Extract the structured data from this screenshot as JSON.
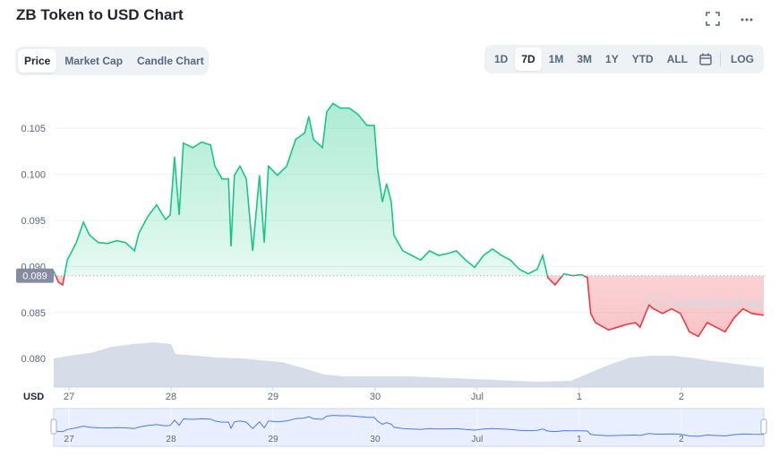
{
  "chart_data": {
    "type": "line",
    "title": "ZB Token to USD Chart",
    "x_axis_label": "USD",
    "watermark": "CoinMarketCap",
    "x": [
      -3.6,
      -2.5,
      -1.5,
      -0.4,
      1.7,
      3.4,
      4.8,
      6.9,
      9.1,
      11.2,
      13.3,
      15.4,
      16.4,
      18.5,
      20.6,
      22.7,
      23.8,
      24.8,
      25.9,
      26.9,
      29.1,
      31.2,
      33.3,
      34.3,
      36.0,
      37.5,
      38.1,
      38.9,
      40.2,
      41.7,
      43.2,
      44.8,
      45.9,
      46.9,
      49.0,
      51.2,
      53.3,
      55.4,
      56.4,
      57.5,
      59.6,
      60.6,
      62.1,
      63.8,
      65.9,
      68.0,
      70.1,
      71.8,
      72.6,
      73.7,
      74.7,
      75.8,
      76.4,
      78.5,
      80.6,
      82.7,
      84.8,
      86.9,
      89.0,
      91.1,
      93.3,
      95.4,
      97.5,
      99.6,
      101.7,
      103.8,
      105.9,
      108.0,
      110.1,
      111.4,
      112.6,
      114.3,
      116.4,
      118.5,
      120.6,
      121.9,
      122.7,
      123.8,
      126.9,
      129.0,
      131.1,
      133.2,
      134.3,
      136.4,
      137.5,
      139.6,
      141.7,
      143.8,
      145.9,
      148.0,
      150.1,
      152.2,
      154.3,
      156.4,
      158.5,
      160.6,
      163.4
    ],
    "values": [
      0.0895,
      0.0883,
      0.088,
      0.0907,
      0.0926,
      0.0948,
      0.0934,
      0.0926,
      0.0925,
      0.0928,
      0.0926,
      0.0917,
      0.0936,
      0.0954,
      0.0967,
      0.0951,
      0.0956,
      0.1019,
      0.0956,
      0.1034,
      0.1029,
      0.1035,
      0.1032,
      0.1009,
      0.0995,
      0.0995,
      0.0922,
      0.0999,
      0.1009,
      0.0995,
      0.0917,
      0.0999,
      0.0926,
      0.1009,
      0.0999,
      0.1009,
      0.1038,
      0.1045,
      0.1063,
      0.1038,
      0.1029,
      0.1068,
      0.1077,
      0.1072,
      0.1072,
      0.1065,
      0.1053,
      0.1053,
      0.1005,
      0.097,
      0.099,
      0.097,
      0.0934,
      0.0917,
      0.0912,
      0.0907,
      0.0917,
      0.0912,
      0.0914,
      0.0917,
      0.0907,
      0.0899,
      0.0912,
      0.0919,
      0.0912,
      0.0907,
      0.0897,
      0.0892,
      0.0897,
      0.0912,
      0.0888,
      0.088,
      0.0892,
      0.089,
      0.0891,
      0.0888,
      0.0849,
      0.0839,
      0.0831,
      0.0834,
      0.0837,
      0.0839,
      0.0834,
      0.0858,
      0.0854,
      0.0849,
      0.0854,
      0.0849,
      0.0829,
      0.0824,
      0.0839,
      0.0834,
      0.0829,
      0.0844,
      0.0854,
      0.0849,
      0.0847
    ],
    "up_color": "#16c784",
    "down_color": "#ea3943",
    "current_price": {
      "value": 0.089,
      "label": "0.089"
    },
    "volume": {
      "color": "#cfd6e4",
      "x": [
        -3.6,
        0,
        5,
        10,
        15,
        20,
        24,
        25,
        30,
        35,
        40,
        45,
        50,
        56,
        60,
        65,
        70,
        80,
        90,
        100,
        110,
        118,
        122,
        127,
        132,
        137,
        142,
        146,
        150,
        155,
        160,
        163.4
      ],
      "values": [
        32,
        35,
        38,
        45,
        48,
        50,
        48,
        37,
        35,
        33,
        32,
        30,
        28,
        20,
        14,
        12,
        12,
        12,
        10,
        8,
        6,
        7,
        15,
        25,
        33,
        35,
        35,
        33,
        30,
        27,
        24,
        22
      ]
    },
    "navigator_color": "#4878ff",
    "xlim": [
      -3.6,
      163.4
    ],
    "xticks": [
      {
        "value": 0,
        "label": "27"
      },
      {
        "value": 24,
        "label": "28"
      },
      {
        "value": 48,
        "label": "29"
      },
      {
        "value": 72,
        "label": "30"
      },
      {
        "value": 96,
        "label": "Jul"
      },
      {
        "value": 120,
        "label": "1"
      },
      {
        "value": 144,
        "label": "2"
      }
    ],
    "ylim": [
      0.0769,
      0.1094
    ],
    "yticks": [
      {
        "value": 0.08,
        "label": "0.080"
      },
      {
        "value": 0.085,
        "label": "0.085"
      },
      {
        "value": 0.09,
        "label": "0.090"
      },
      {
        "value": 0.095,
        "label": "0.095"
      },
      {
        "value": 0.1,
        "label": "0.100"
      },
      {
        "value": 0.105,
        "label": "0.105"
      }
    ],
    "grid": true
  },
  "tabs": [
    "Price",
    "Market Cap",
    "Candle Chart"
  ],
  "active_tab": 0,
  "ranges": [
    "1D",
    "7D",
    "1M",
    "3M",
    "1Y",
    "YTD",
    "ALL"
  ],
  "active_range": 1,
  "log": "LOG"
}
